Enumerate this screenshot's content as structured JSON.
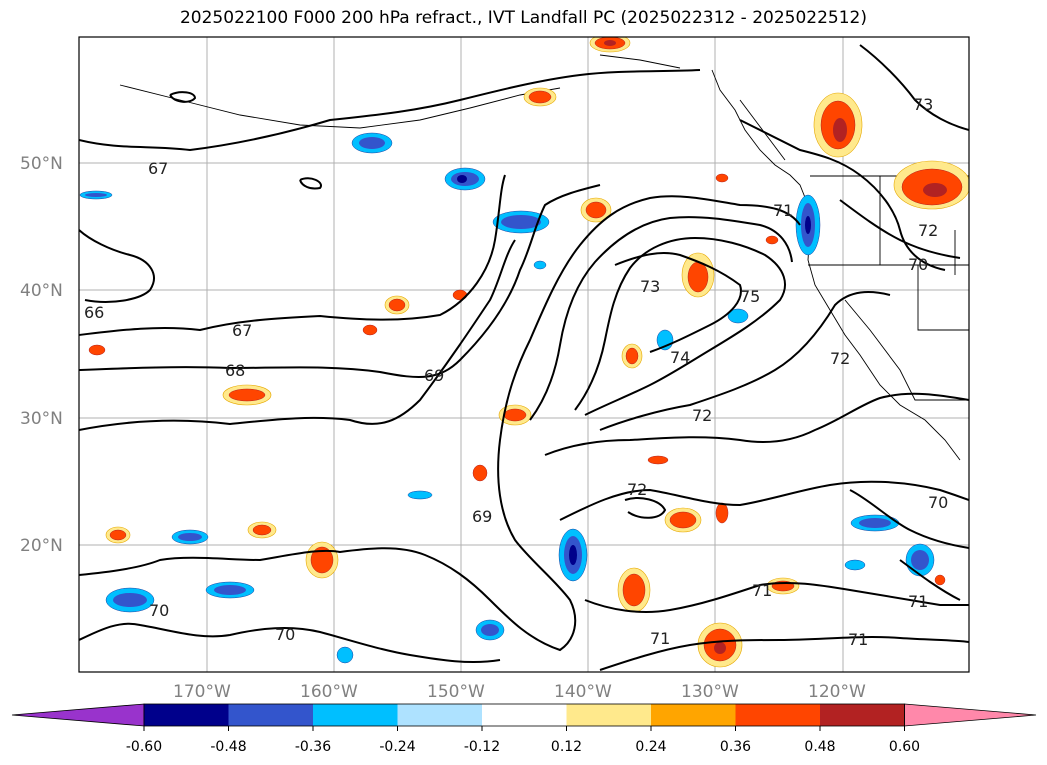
{
  "title": "2025022100 F000 200 hPa refract., IVT Landfall PC (2025022312 - 2025022512)",
  "lat_labels": [
    "50°N",
    "40°N",
    "30°N",
    "20°N"
  ],
  "lon_labels": [
    "170°W",
    "160°W",
    "150°W",
    "140°W",
    "130°W",
    "120°W"
  ],
  "contour_labels": [
    "67",
    "67",
    "68",
    "69",
    "69",
    "70",
    "70",
    "70",
    "71",
    "71",
    "71",
    "71",
    "71",
    "72",
    "72",
    "72",
    "73",
    "74",
    "75",
    "73",
    "70",
    "66",
    "72"
  ],
  "colorbar": {
    "ticks": [
      "-0.60",
      "-0.48",
      "-0.36",
      "-0.24",
      "-0.12",
      "0.12",
      "0.24",
      "0.36",
      "0.48",
      "0.60"
    ],
    "colors": [
      "#9933cc",
      "#00008b",
      "#3355cc",
      "#00bfff",
      "#aee2ff",
      "#ffffff",
      "#ffe98c",
      "#ffa500",
      "#ff4500",
      "#b22222",
      "#ff88aa"
    ]
  }
}
